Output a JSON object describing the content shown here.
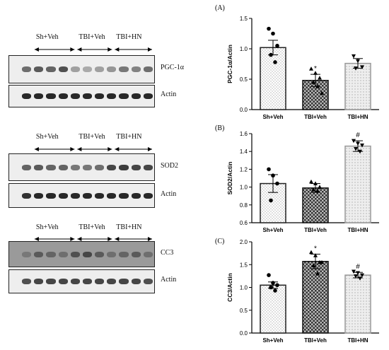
{
  "blots": [
    {
      "groups": [
        "Sh+Veh",
        "TBI+Veh",
        "TBI+HN"
      ],
      "rows": [
        {
          "label": "PGC-1α",
          "intensity": [
            0.55,
            0.65,
            0.6,
            0.7,
            0.3,
            0.25,
            0.3,
            0.35,
            0.5,
            0.45,
            0.55
          ]
        },
        {
          "label": "Actin",
          "intensity": [
            0.9,
            0.9,
            0.9,
            0.9,
            0.9,
            0.9,
            0.9,
            0.9,
            0.9,
            0.9,
            0.9
          ]
        }
      ]
    },
    {
      "groups": [
        "Sh+Veh",
        "TBI+Veh",
        "TBI+HN"
      ],
      "rows": [
        {
          "label": "SOD2",
          "intensity": [
            0.6,
            0.65,
            0.6,
            0.6,
            0.5,
            0.5,
            0.55,
            0.75,
            0.8,
            0.75,
            0.75
          ]
        },
        {
          "label": "Actin",
          "intensity": [
            0.85,
            0.9,
            0.9,
            0.9,
            0.9,
            0.9,
            0.9,
            0.9,
            0.9,
            0.9,
            0.9
          ]
        }
      ]
    },
    {
      "groups": [
        "Sh+Veh",
        "TBI+Veh",
        "TBI+HN"
      ],
      "rows": [
        {
          "label": "CC3",
          "intensity": [
            0.5,
            0.65,
            0.6,
            0.55,
            0.7,
            0.75,
            0.65,
            0.55,
            0.6,
            0.65,
            0.55
          ]
        },
        {
          "label": "Actin",
          "intensity": [
            0.7,
            0.75,
            0.75,
            0.75,
            0.75,
            0.75,
            0.75,
            0.75,
            0.75,
            0.75,
            0.7
          ]
        }
      ]
    }
  ],
  "chart_data": [
    {
      "type": "bar",
      "panel": "(A)",
      "categories": [
        "Sh+Veh",
        "TBI+Veh",
        "TBI+HN"
      ],
      "values": [
        1.02,
        0.48,
        0.76
      ],
      "errors": [
        0.12,
        0.1,
        0.08
      ],
      "points": [
        [
          1.33,
          1.25,
          1.05,
          0.9,
          0.78
        ],
        [
          0.67,
          0.6,
          0.52,
          0.45,
          0.38,
          0.27
        ],
        [
          0.88,
          0.8,
          0.7,
          0.68
        ]
      ],
      "significance": [
        "",
        "*",
        ""
      ],
      "ylabel": "PGC-1α/Actin",
      "ylim": [
        0,
        1.5
      ],
      "yticks": [
        "0.0",
        "0.5",
        "1.0",
        "1.5"
      ]
    },
    {
      "type": "bar",
      "panel": "(B)",
      "categories": [
        "Sh+Veh",
        "TBI+Veh",
        "TBI+HN"
      ],
      "values": [
        1.04,
        0.99,
        1.46
      ],
      "errors": [
        0.1,
        0.05,
        0.06
      ],
      "points": [
        [
          1.2,
          1.13,
          1.04,
          0.85
        ],
        [
          1.06,
          1.04,
          1.0,
          0.97,
          0.96
        ],
        [
          1.52,
          1.49,
          1.47,
          1.43,
          1.4
        ]
      ],
      "significance": [
        "",
        "",
        "#"
      ],
      "ylabel": "SOD2/Actin",
      "ylim": [
        0.6,
        1.6
      ],
      "yticks": [
        "0.6",
        "0.8",
        "1.0",
        "1.2",
        "1.4",
        "1.6"
      ]
    },
    {
      "type": "bar",
      "panel": "(C)",
      "categories": [
        "Sh+Veh",
        "TBI+Veh",
        "TBI+HN"
      ],
      "values": [
        1.05,
        1.57,
        1.27
      ],
      "errors": [
        0.07,
        0.16,
        0.06
      ],
      "points": [
        [
          1.27,
          1.1,
          1.05,
          1.0,
          0.93
        ],
        [
          1.77,
          1.7,
          1.55,
          1.48,
          1.3,
          1.55
        ],
        [
          1.35,
          1.32,
          1.27,
          1.25,
          1.2
        ]
      ],
      "significance": [
        "",
        "*",
        "#"
      ],
      "ylabel": "CC3/Actin",
      "ylim": [
        0,
        2.0
      ],
      "yticks": [
        "0.0",
        "0.5",
        "1.0",
        "1.5",
        "2.0"
      ]
    }
  ]
}
